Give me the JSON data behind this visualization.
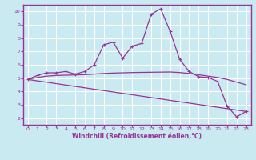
{
  "xlabel": "Windchill (Refroidissement éolien,°C)",
  "background_color": "#c8eaf0",
  "grid_color": "#ffffff",
  "line_color": "#993399",
  "border_color": "#993399",
  "xlim": [
    -0.5,
    23.5
  ],
  "ylim": [
    1.5,
    10.5
  ],
  "xticks": [
    0,
    1,
    2,
    3,
    4,
    5,
    6,
    7,
    8,
    9,
    10,
    11,
    12,
    13,
    14,
    15,
    16,
    17,
    18,
    19,
    20,
    21,
    22,
    23
  ],
  "yticks": [
    2,
    3,
    4,
    5,
    6,
    7,
    8,
    9,
    10
  ],
  "series1_x": [
    0,
    1,
    2,
    3,
    4,
    5,
    6,
    7,
    8,
    9,
    10,
    11,
    12,
    13,
    14,
    15,
    16,
    17,
    18,
    19,
    20,
    21,
    22,
    23
  ],
  "series1_y": [
    4.9,
    5.2,
    5.4,
    5.4,
    5.5,
    5.3,
    5.5,
    6.0,
    7.5,
    7.7,
    6.5,
    7.4,
    7.6,
    9.8,
    10.2,
    8.5,
    6.4,
    5.5,
    5.1,
    5.05,
    4.75,
    2.9,
    2.1,
    2.5
  ],
  "series2_x": [
    0,
    23
  ],
  "series2_y": [
    4.9,
    2.5
  ],
  "series3_x": [
    0,
    1,
    2,
    3,
    4,
    5,
    6,
    7,
    8,
    9,
    10,
    11,
    12,
    13,
    14,
    15,
    16,
    17,
    18,
    19,
    20,
    21,
    22,
    23
  ],
  "series3_y": [
    4.9,
    5.05,
    5.15,
    5.2,
    5.22,
    5.24,
    5.26,
    5.3,
    5.35,
    5.38,
    5.4,
    5.42,
    5.43,
    5.44,
    5.45,
    5.46,
    5.42,
    5.35,
    5.25,
    5.15,
    5.05,
    4.9,
    4.7,
    4.5
  ]
}
